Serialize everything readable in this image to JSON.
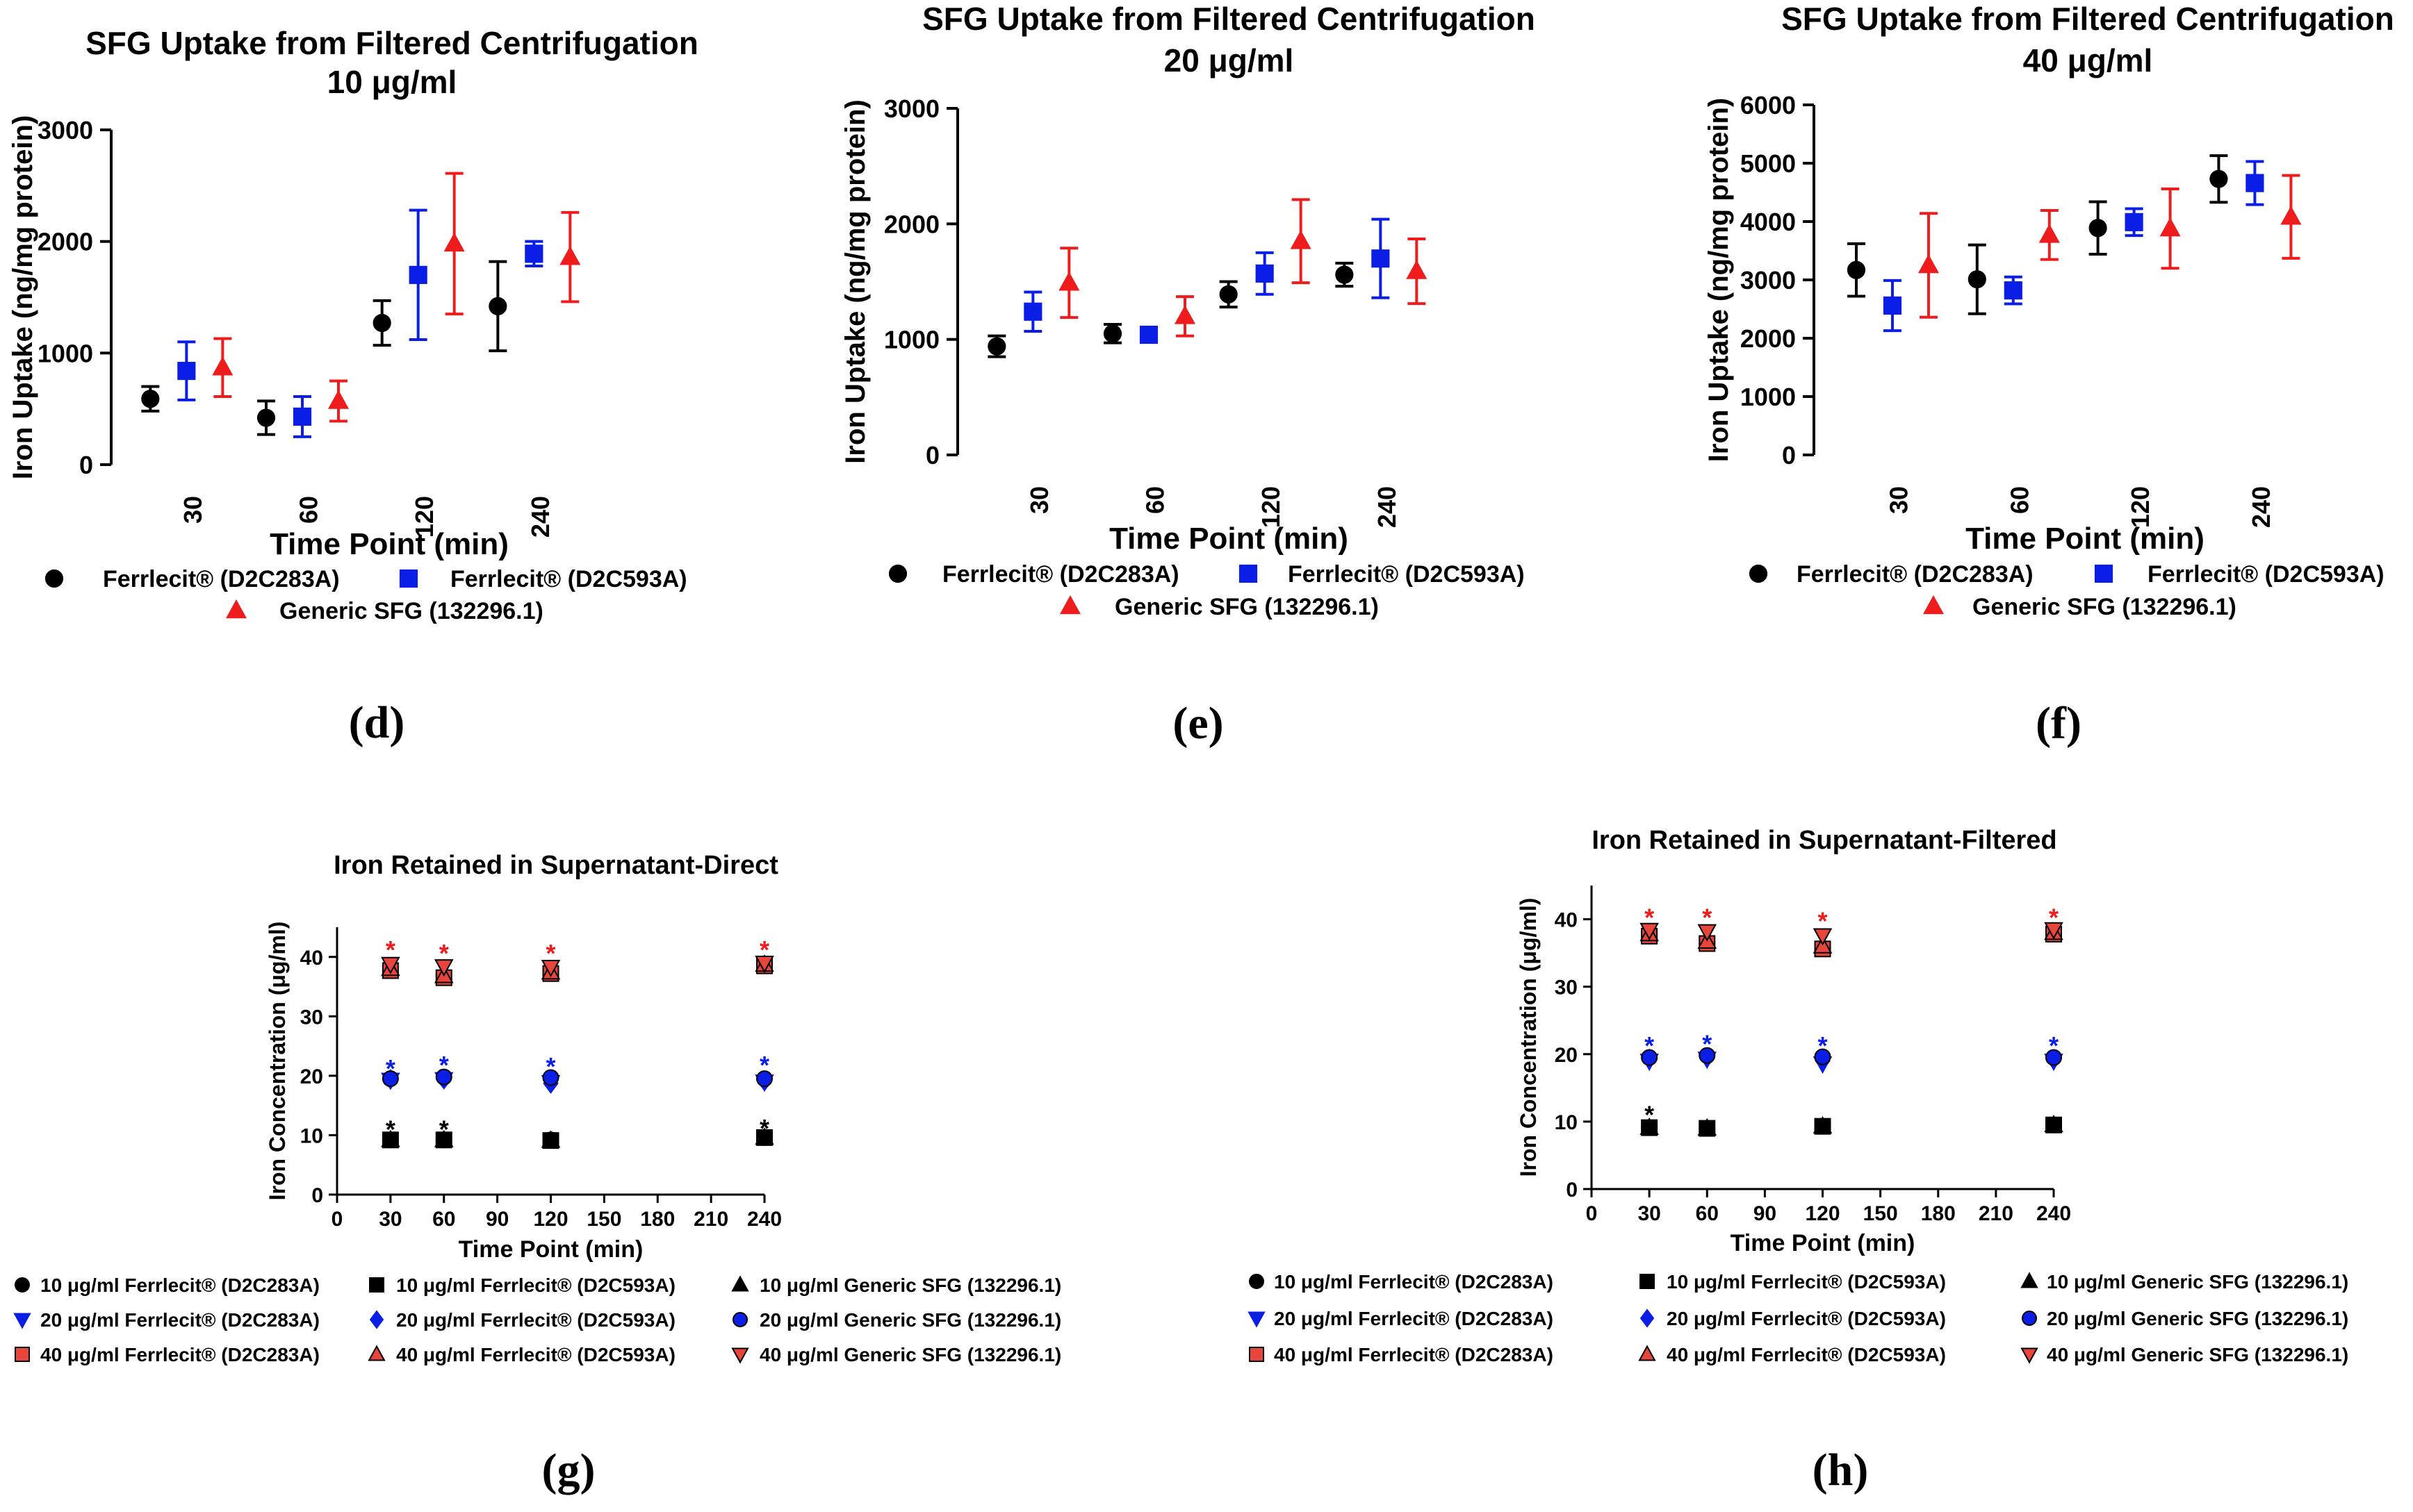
{
  "colors": {
    "black": "#000000",
    "blue": "#0b1ee6",
    "red": "#ee1c1c",
    "redfill": "#e8453c"
  },
  "panel_labels": {
    "d": "(d)",
    "e": "(e)",
    "f": "(f)",
    "g": "(g)",
    "h": "(h)"
  },
  "chart_data": [
    {
      "id": "d",
      "type": "scatter",
      "title": "SFG Uptake from Filtered Centrifugation",
      "subtitle": "10 μg/ml",
      "xlabel": "Time Point (min)",
      "ylabel": "Iron Uptake (ng/mg protein)",
      "categories": [
        "30",
        "60",
        "120",
        "240"
      ],
      "ylim": [
        0,
        3000
      ],
      "yticks": [
        0,
        1000,
        2000,
        3000
      ],
      "series": [
        {
          "name": "Ferrlecit® (D2C283A)",
          "color": "black",
          "marker": "circle",
          "values": [
            590,
            420,
            1270,
            1420
          ],
          "err": [
            110,
            150,
            200,
            400
          ]
        },
        {
          "name": "Ferrlecit® (D2C593A)",
          "color": "blue",
          "marker": "square",
          "values": [
            840,
            430,
            1700,
            1890
          ],
          "err": [
            260,
            180,
            580,
            110
          ]
        },
        {
          "name": "Generic SFG (132296.1)",
          "color": "red",
          "marker": "triangle",
          "values": [
            870,
            570,
            1980,
            1860
          ],
          "err": [
            260,
            180,
            630,
            400
          ]
        }
      ]
    },
    {
      "id": "e",
      "type": "scatter",
      "title": "SFG Uptake from Filtered Centrifugation",
      "subtitle": "20 μg/ml",
      "xlabel": "Time Point (min)",
      "ylabel": "Iron Uptake (ng/mg protein)",
      "categories": [
        "30",
        "60",
        "120",
        "240"
      ],
      "ylim": [
        0,
        3000
      ],
      "yticks": [
        0,
        1000,
        2000,
        3000
      ],
      "series": [
        {
          "name": "Ferrlecit® (D2C283A)",
          "color": "black",
          "marker": "circle",
          "values": [
            940,
            1050,
            1390,
            1560
          ],
          "err": [
            90,
            80,
            110,
            100
          ]
        },
        {
          "name": "Ferrlecit® (D2C593A)",
          "color": "blue",
          "marker": "square",
          "values": [
            1240,
            1040,
            1570,
            1700
          ],
          "err": [
            170,
            50,
            180,
            340
          ]
        },
        {
          "name": "Generic SFG (132296.1)",
          "color": "red",
          "marker": "triangle",
          "values": [
            1490,
            1200,
            1850,
            1590
          ],
          "err": [
            300,
            170,
            360,
            280
          ]
        }
      ]
    },
    {
      "id": "f",
      "type": "scatter",
      "title": "SFG Uptake from Filtered Centrifugation",
      "subtitle": "40 μg/ml",
      "xlabel": "Time Point (min)",
      "ylabel": "Iron Uptake (ng/mg protein)",
      "categories": [
        "30",
        "60",
        "120",
        "240"
      ],
      "ylim": [
        0,
        6000
      ],
      "yticks": [
        0,
        1000,
        2000,
        3000,
        4000,
        5000,
        6000
      ],
      "series": [
        {
          "name": "Ferrlecit® (D2C283A)",
          "color": "black",
          "marker": "circle",
          "values": [
            3170,
            3010,
            3890,
            4730
          ],
          "err": [
            450,
            590,
            450,
            400
          ]
        },
        {
          "name": "Ferrlecit® (D2C593A)",
          "color": "blue",
          "marker": "square",
          "values": [
            2560,
            2820,
            3990,
            4660
          ],
          "err": [
            430,
            230,
            230,
            370
          ]
        },
        {
          "name": "Generic SFG (132296.1)",
          "color": "red",
          "marker": "triangle",
          "values": [
            3250,
            3770,
            3880,
            4080
          ],
          "err": [
            890,
            420,
            680,
            710
          ]
        }
      ]
    },
    {
      "id": "g",
      "type": "scatter",
      "title": "Iron Retained in Supernatant-Direct",
      "xlabel": "Time Point (min)",
      "ylabel": "Iron Concentration (μg/ml)",
      "xlim": [
        0,
        240
      ],
      "xticks": [
        0,
        30,
        60,
        90,
        120,
        150,
        180,
        210,
        240
      ],
      "ylim": [
        0,
        45
      ],
      "yticks": [
        0,
        10,
        20,
        30,
        40
      ],
      "x": [
        30,
        60,
        120,
        240
      ],
      "series": [
        {
          "name": "10 μg/ml Ferrlecit® (D2C283A)",
          "marker": "circle",
          "fill": "black",
          "stroke": "black",
          "values": [
            9.2,
            9.2,
            9.2,
            9.6
          ]
        },
        {
          "name": "10 μg/ml Ferrlecit® (D2C593A)",
          "marker": "square",
          "fill": "black",
          "stroke": "black",
          "values": [
            9.2,
            9.2,
            9.1,
            9.6
          ]
        },
        {
          "name": "10 μg/ml Generic SFG (132296.1)",
          "marker": "triangle",
          "fill": "black",
          "stroke": "black",
          "values": [
            9.2,
            9.2,
            9.1,
            9.6
          ]
        },
        {
          "name": "20 μg/ml Ferrlecit® (D2C283A)",
          "marker": "tri-down",
          "fill": "blue",
          "stroke": "blue",
          "values": [
            19.3,
            19.4,
            18.9,
            19.0
          ]
        },
        {
          "name": "20 μg/ml Ferrlecit® (D2C593A)",
          "marker": "diamond",
          "fill": "blue",
          "stroke": "blue",
          "values": [
            19.4,
            19.4,
            18.7,
            19.1
          ]
        },
        {
          "name": "20 μg/ml Generic SFG (132296.1)",
          "marker": "circle",
          "fill": "blue",
          "stroke": "black",
          "values": [
            19.5,
            19.8,
            19.7,
            19.5
          ]
        },
        {
          "name": "40 μg/ml Ferrlecit® (D2C283A)",
          "marker": "square",
          "fill": "redfill",
          "stroke": "black",
          "values": [
            37.7,
            36.5,
            37.2,
            38.5
          ]
        },
        {
          "name": "40 μg/ml Ferrlecit® (D2C593A)",
          "marker": "triangle",
          "fill": "redfill",
          "stroke": "black",
          "values": [
            38.0,
            36.8,
            37.4,
            38.7
          ]
        },
        {
          "name": "40 μg/ml Generic SFG (132296.1)",
          "marker": "tri-down",
          "fill": "redfill",
          "stroke": "black",
          "values": [
            38.8,
            38.4,
            38.3,
            39.0
          ]
        }
      ],
      "annotations": [
        {
          "text": "*",
          "x": 30,
          "y": 41.6,
          "color": "red"
        },
        {
          "text": "*",
          "x": 60,
          "y": 41.0,
          "color": "red"
        },
        {
          "text": "*",
          "x": 120,
          "y": 41.0,
          "color": "red"
        },
        {
          "text": "*",
          "x": 240,
          "y": 41.6,
          "color": "red"
        },
        {
          "text": "*",
          "x": 30,
          "y": 21.6,
          "color": "blue"
        },
        {
          "text": "*",
          "x": 60,
          "y": 22.2,
          "color": "blue"
        },
        {
          "text": "*",
          "x": 120,
          "y": 22.0,
          "color": "blue"
        },
        {
          "text": "*",
          "x": 240,
          "y": 22.2,
          "color": "blue"
        },
        {
          "text": "*",
          "x": 30,
          "y": 11.4,
          "color": "black"
        },
        {
          "text": "*",
          "x": 60,
          "y": 11.4,
          "color": "black"
        },
        {
          "text": "*",
          "x": 240,
          "y": 11.6,
          "color": "black"
        }
      ]
    },
    {
      "id": "h",
      "type": "scatter",
      "title": "Iron Retained in Supernatant-Filtered",
      "xlabel": "Time Point (min)",
      "ylabel": "Iron Concentration (μg/ml)",
      "xlim": [
        0,
        240
      ],
      "xticks": [
        0,
        30,
        60,
        90,
        120,
        150,
        180,
        210,
        240
      ],
      "ylim": [
        0,
        45
      ],
      "yticks": [
        0,
        10,
        20,
        30,
        40
      ],
      "x": [
        30,
        60,
        120,
        240
      ],
      "series": [
        {
          "name": "10 μg/ml Ferrlecit® (D2C283A)",
          "marker": "circle",
          "fill": "black",
          "stroke": "black",
          "values": [
            9.1,
            9.0,
            9.3,
            9.5
          ]
        },
        {
          "name": "10 μg/ml Ferrlecit® (D2C593A)",
          "marker": "square",
          "fill": "black",
          "stroke": "black",
          "values": [
            9.1,
            9.0,
            9.3,
            9.5
          ]
        },
        {
          "name": "10 μg/ml Generic SFG (132296.1)",
          "marker": "triangle",
          "fill": "black",
          "stroke": "black",
          "values": [
            9.1,
            9.0,
            9.3,
            9.5
          ]
        },
        {
          "name": "20 μg/ml Ferrlecit® (D2C283A)",
          "marker": "tri-down",
          "fill": "blue",
          "stroke": "blue",
          "values": [
            19.0,
            19.3,
            18.6,
            19.0
          ]
        },
        {
          "name": "20 μg/ml Ferrlecit® (D2C593A)",
          "marker": "diamond",
          "fill": "blue",
          "stroke": "blue",
          "values": [
            19.3,
            19.5,
            19.0,
            19.2
          ]
        },
        {
          "name": "20 μg/ml Generic SFG (132296.1)",
          "marker": "circle",
          "fill": "blue",
          "stroke": "black",
          "values": [
            19.5,
            19.8,
            19.6,
            19.5
          ]
        },
        {
          "name": "40 μg/ml Ferrlecit® (D2C283A)",
          "marker": "square",
          "fill": "redfill",
          "stroke": "black",
          "values": [
            37.5,
            36.4,
            35.6,
            37.8
          ]
        },
        {
          "name": "40 μg/ml Ferrlecit® (D2C593A)",
          "marker": "triangle",
          "fill": "redfill",
          "stroke": "black",
          "values": [
            37.8,
            36.7,
            36.0,
            38.0
          ]
        },
        {
          "name": "40 μg/ml Generic SFG (132296.1)",
          "marker": "tri-down",
          "fill": "redfill",
          "stroke": "black",
          "values": [
            38.4,
            38.2,
            37.6,
            38.5
          ]
        }
      ],
      "annotations": [
        {
          "text": "*",
          "x": 30,
          "y": 40.6,
          "color": "red"
        },
        {
          "text": "*",
          "x": 60,
          "y": 40.6,
          "color": "red"
        },
        {
          "text": "*",
          "x": 120,
          "y": 40.1,
          "color": "red"
        },
        {
          "text": "*",
          "x": 240,
          "y": 40.6,
          "color": "red"
        },
        {
          "text": "*",
          "x": 30,
          "y": 21.6,
          "color": "blue"
        },
        {
          "text": "*",
          "x": 60,
          "y": 21.9,
          "color": "blue"
        },
        {
          "text": "*",
          "x": 120,
          "y": 21.6,
          "color": "blue"
        },
        {
          "text": "*",
          "x": 240,
          "y": 21.6,
          "color": "blue"
        },
        {
          "text": "*",
          "x": 30,
          "y": 11.4,
          "color": "black"
        }
      ]
    }
  ]
}
